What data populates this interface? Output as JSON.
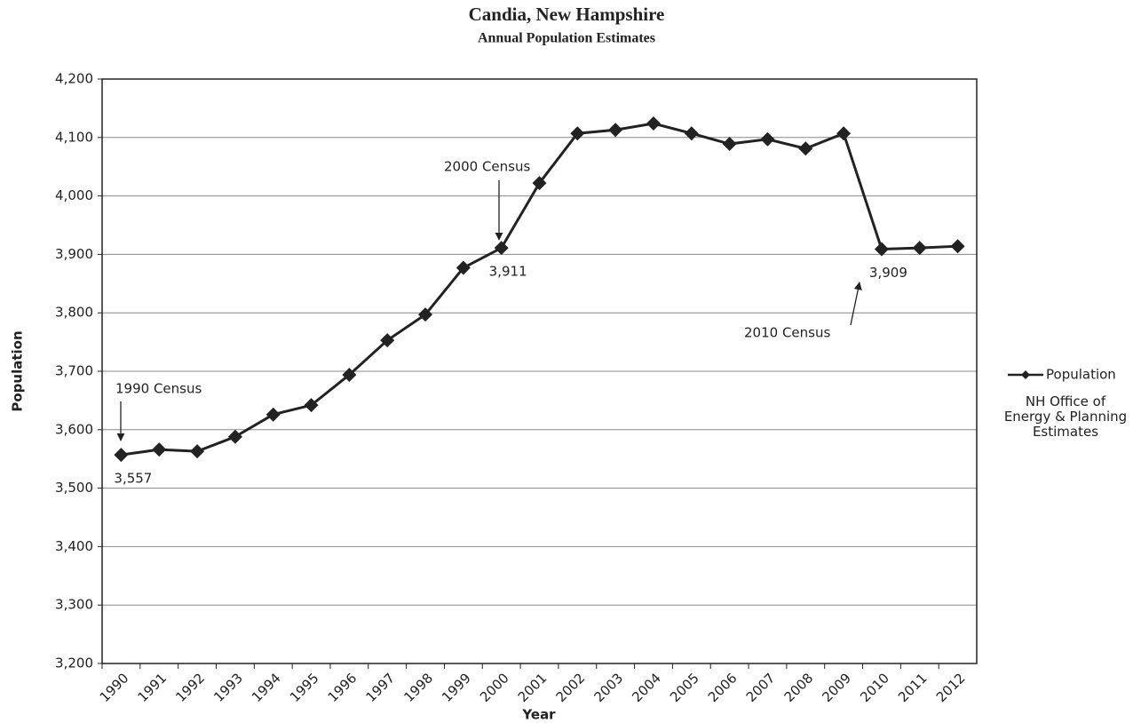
{
  "chart_data": {
    "type": "line",
    "title": "Candia, New Hampshire",
    "subtitle": "Annual Population Estimates",
    "x_label": "Year",
    "y_label": "Population",
    "categories": [
      "1990",
      "1991",
      "1992",
      "1993",
      "1994",
      "1995",
      "1996",
      "1997",
      "1998",
      "1999",
      "2000",
      "2001",
      "2002",
      "2003",
      "2004",
      "2005",
      "2006",
      "2007",
      "2008",
      "2009",
      "2010",
      "2011",
      "2012"
    ],
    "series": [
      {
        "name": "Population",
        "color": "#222222",
        "values": [
          3557,
          3566,
          3563,
          3588,
          3626,
          3642,
          3694,
          3753,
          3797,
          3877,
          3911,
          4022,
          4107,
          4113,
          4124,
          4107,
          4089,
          4097,
          4081,
          4107,
          3909,
          3911,
          3914
        ],
        "value_labels": [
          "3,557",
          null,
          null,
          null,
          null,
          null,
          null,
          null,
          null,
          null,
          "3,911",
          null,
          null,
          null,
          null,
          null,
          null,
          null,
          null,
          null,
          "3,909",
          null,
          null
        ]
      }
    ],
    "annotations": [
      "1990 Census",
      "2000 Census",
      "2010 Census"
    ],
    "legend_note": "NH Office of Energy & Planning Estimates",
    "ylim": [
      3200,
      4200
    ],
    "yticks": [
      {
        "value": 3200,
        "label": "3,200"
      },
      {
        "value": 3300,
        "label": "3,300"
      },
      {
        "value": 3400,
        "label": "3,400"
      },
      {
        "value": 3500,
        "label": "3,500"
      },
      {
        "value": 3600,
        "label": "3,600"
      },
      {
        "value": 3700,
        "label": "3,700"
      },
      {
        "value": 3800,
        "label": "3,800"
      },
      {
        "value": 3900,
        "label": "3,900"
      },
      {
        "value": 4000,
        "label": "4,000"
      },
      {
        "value": 4100,
        "label": "4,100"
      },
      {
        "value": 4200,
        "label": "4,200"
      }
    ],
    "grid": true,
    "legend": "right"
  }
}
